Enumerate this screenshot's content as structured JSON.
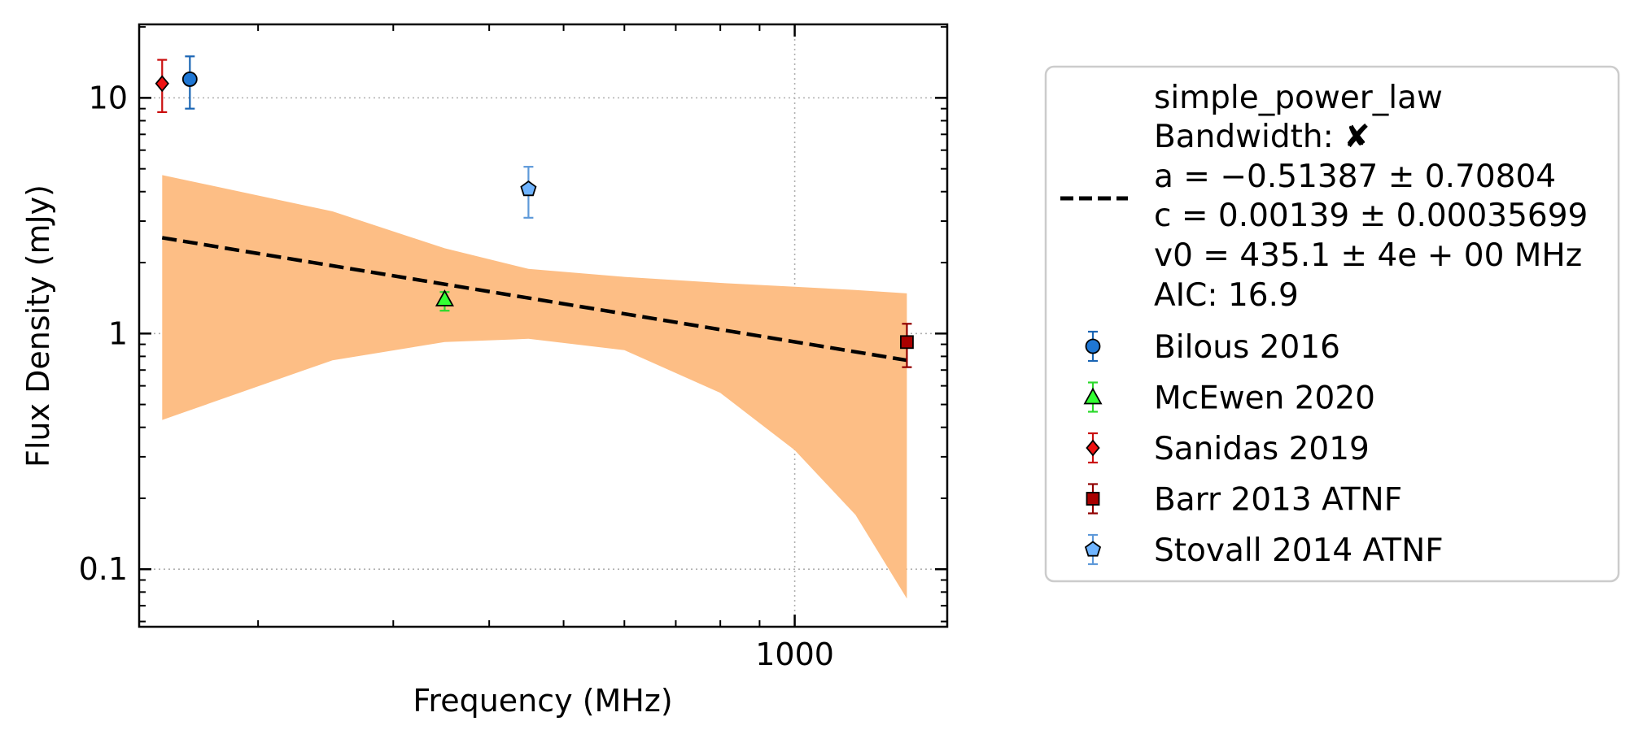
{
  "chart_data": {
    "type": "scatter",
    "xlabel": "Frequency (MHz)",
    "ylabel": "Flux Density (mJy)",
    "xscale": "log",
    "yscale": "log",
    "xlim": [
      140,
      1580
    ],
    "ylim": [
      0.057,
      20.5
    ],
    "xticks": [
      {
        "value": 1000,
        "label": "1000"
      }
    ],
    "yticks": [
      {
        "value": 0.1,
        "label": "0.1"
      },
      {
        "value": 1,
        "label": "1"
      },
      {
        "value": 10,
        "label": "10"
      }
    ],
    "grid": true,
    "legend_position": "outside-right",
    "fit": {
      "name": "simple_power_law",
      "color": "#000000",
      "style": "dashed",
      "x": [
        150,
        1400
      ],
      "y": [
        2.55,
        0.77
      ],
      "legend_lines": [
        "simple_power_law",
        "Bandwidth: ✘",
        "a = −0.51387 ± 0.70804",
        "c = 0.00139 ± 0.00035699",
        "v0 = 435.1 ± 4e + 00 MHz",
        "AIC: 16.9"
      ]
    },
    "uncertainty_band": {
      "color": "#fdbe85",
      "x": [
        150,
        250,
        350,
        450,
        600,
        800,
        1000,
        1200,
        1400
      ],
      "upper": [
        4.7,
        3.3,
        2.3,
        1.88,
        1.74,
        1.64,
        1.58,
        1.53,
        1.48
      ],
      "lower": [
        0.43,
        0.77,
        0.92,
        0.95,
        0.85,
        0.56,
        0.32,
        0.17,
        0.075
      ]
    },
    "series": [
      {
        "name": "Bilous 2016",
        "marker": "circle",
        "color": "#1f77d4",
        "points": [
          {
            "x": 163,
            "y": 12.0,
            "err_low": 9.0,
            "err_high": 15.0
          }
        ]
      },
      {
        "name": "McEwen 2020",
        "marker": "triangle",
        "color": "#33ff33",
        "points": [
          {
            "x": 350,
            "y": 1.4,
            "err_low": 1.25,
            "err_high": 1.5
          }
        ]
      },
      {
        "name": "Sanidas 2019",
        "marker": "diamond",
        "color": "#ee1111",
        "points": [
          {
            "x": 150,
            "y": 11.5,
            "err_low": 8.7,
            "err_high": 14.5
          }
        ]
      },
      {
        "name": "Barr 2013 ATNF",
        "marker": "square",
        "color": "#aa0000",
        "points": [
          {
            "x": 1400,
            "y": 0.92,
            "err_low": 0.72,
            "err_high": 1.1
          }
        ]
      },
      {
        "name": "Stovall 2014 ATNF",
        "marker": "pentagon",
        "color": "#6fb4ff",
        "points": [
          {
            "x": 450,
            "y": 4.1,
            "err_low": 3.1,
            "err_high": 5.1
          }
        ]
      }
    ]
  }
}
